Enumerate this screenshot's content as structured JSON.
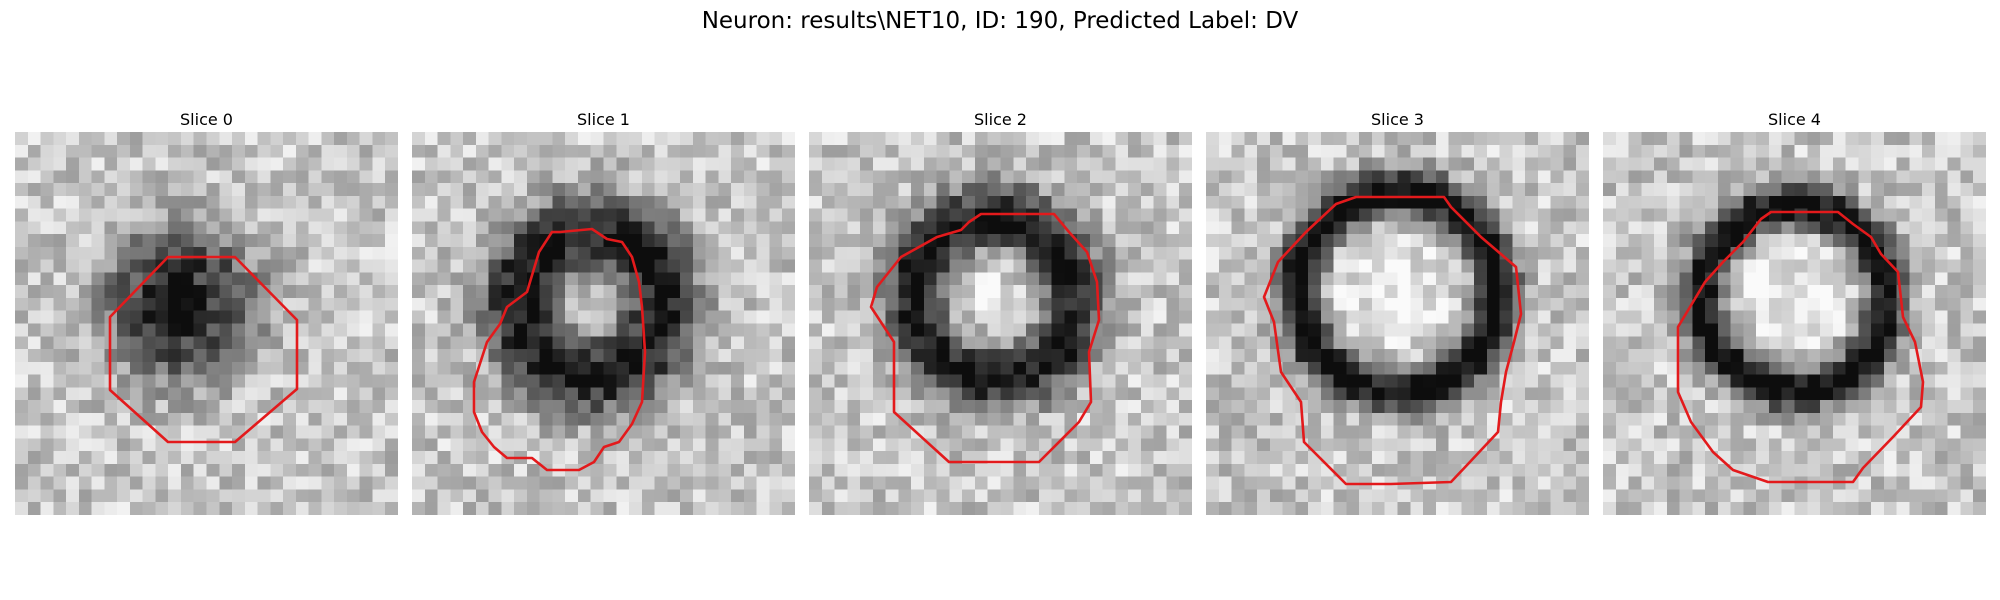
{
  "figure": {
    "title": "Neuron: results\\NET10, ID: 190, Predicted Label: DV"
  },
  "colors": {
    "contour": "#e31a1c",
    "background": "#ffffff"
  },
  "slices": [
    {
      "title": "Slice 0"
    },
    {
      "title": "Slice 1"
    },
    {
      "title": "Slice 2"
    },
    {
      "title": "Slice 3"
    },
    {
      "title": "Slice 4"
    }
  ]
}
